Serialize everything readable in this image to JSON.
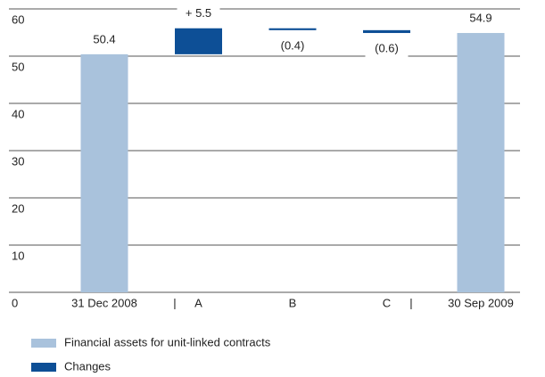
{
  "chart_data": {
    "type": "waterfall",
    "categories": [
      "31 Dec 2008",
      "A",
      "B",
      "C",
      "30 Sep 2009"
    ],
    "series": [
      {
        "name": "Financial assets for unit-linked contracts",
        "color": "#a9c2dc",
        "values": [
          50.4,
          null,
          null,
          null,
          54.9
        ]
      },
      {
        "name": "Changes",
        "color": "#0d4f96",
        "values": [
          null,
          5.5,
          -0.4,
          -0.6,
          null
        ],
        "value_labels": [
          null,
          "+ 5.5",
          "(0.4)",
          "(0.6)",
          null
        ]
      }
    ],
    "ylim": [
      0,
      60
    ],
    "yticks": [
      0,
      10,
      20,
      30,
      40,
      50,
      60
    ],
    "grid": true
  }
}
